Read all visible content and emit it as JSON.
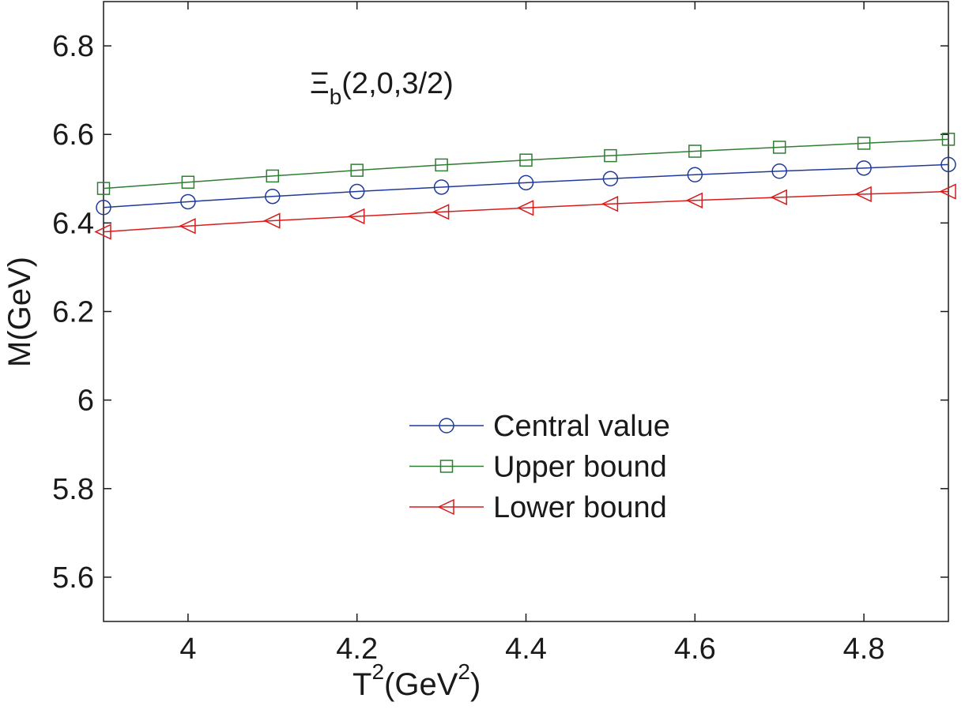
{
  "chart_data": {
    "type": "line",
    "title": "",
    "xlabel": {
      "base": "T",
      "sup": "2",
      "mid": "(GeV",
      "sup2": "2",
      "end": ")"
    },
    "ylabel": "M(GeV)",
    "xlim": [
      3.9,
      4.9
    ],
    "ylim": [
      5.5,
      6.9
    ],
    "xticks": [
      4.0,
      4.2,
      4.4,
      4.6,
      4.8
    ],
    "xtick_labels": [
      "4",
      "4.2",
      "4.4",
      "4.6",
      "4.8"
    ],
    "yticks": [
      5.6,
      5.8,
      6.0,
      6.2,
      6.4,
      6.6,
      6.8
    ],
    "ytick_labels": [
      "5.6",
      "5.8",
      "6",
      "6.2",
      "6.4",
      "6.6",
      "6.8"
    ],
    "grid": false,
    "legend_position": "bottom-center",
    "annotation": {
      "base": "Ξ",
      "sub": "b",
      "rest": "(2,0,3/2)"
    },
    "x": [
      3.9,
      4.0,
      4.1,
      4.2,
      4.3,
      4.4,
      4.5,
      4.6,
      4.7,
      4.8,
      4.9
    ],
    "series": [
      {
        "name": "Central value",
        "color": "#1f3a9c",
        "marker": "circle",
        "values": [
          6.435,
          6.448,
          6.46,
          6.471,
          6.481,
          6.491,
          6.5,
          6.509,
          6.517,
          6.524,
          6.532
        ]
      },
      {
        "name": "Upper bound",
        "color": "#2e7d32",
        "marker": "square",
        "values": [
          6.478,
          6.492,
          6.506,
          6.519,
          6.531,
          6.542,
          6.552,
          6.562,
          6.571,
          6.58,
          6.589
        ]
      },
      {
        "name": "Lower bound",
        "color": "#d81b1b",
        "marker": "triangle-left",
        "values": [
          6.38,
          6.393,
          6.405,
          6.415,
          6.425,
          6.434,
          6.443,
          6.451,
          6.458,
          6.465,
          6.471
        ]
      }
    ]
  }
}
